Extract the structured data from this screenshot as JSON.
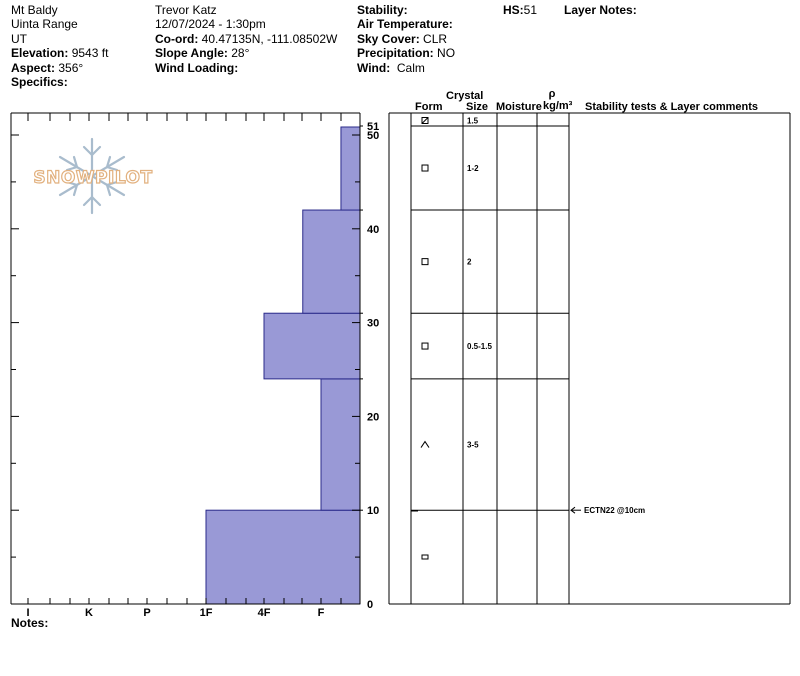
{
  "header": {
    "location": "Mt Baldy",
    "range": "Uinta Range",
    "state": "UT",
    "elevation_label": "Elevation:",
    "elevation_value": "9543 ft",
    "aspect_label": "Aspect:",
    "aspect_value": "356°",
    "specifics_label": "Specifics:",
    "observer": "Trevor Katz",
    "datetime": "12/07/2024 - 1:30pm",
    "coord_label": "Co-ord:",
    "coord_value": "40.47135N, -111.08502W",
    "slope_label": "Slope Angle:",
    "slope_value": "28°",
    "wind_loading_label": "Wind Loading:",
    "stability_label": "Stability:",
    "air_temp_label": "Air Temperature:",
    "sky_label": "Sky Cover:",
    "sky_value": "CLR",
    "precip_label": "Precipitation:",
    "precip_value": "NO",
    "wind_label": "Wind:",
    "wind_value": "Calm",
    "hs_label": "HS:",
    "hs_value": "51",
    "layer_notes_label": "Layer Notes:"
  },
  "logo": {
    "text": "SNOWPILOT"
  },
  "columns": {
    "crystal": "Crystal",
    "form": "Form",
    "size": "Size",
    "moisture": "Moisture",
    "rho": "ρ",
    "density_unit": "kg/m³",
    "stability_comments": "Stability tests & Layer comments"
  },
  "notes_label": "Notes:",
  "chart_data": {
    "type": "bar",
    "orientation": "horizontal-step",
    "title": "",
    "xlabel": "",
    "ylabel": "",
    "x_categories": [
      "I",
      "K",
      "P",
      "1F",
      "4F",
      "F"
    ],
    "ylim": [
      0,
      52
    ],
    "y_ticks": [
      0,
      10,
      20,
      30,
      40,
      50,
      51
    ],
    "bar_color": "#9999d6",
    "layers": [
      {
        "bottom": 0,
        "top": 10,
        "hardness_index": 3,
        "form": "rect",
        "size": ""
      },
      {
        "bottom": 10,
        "top": 24,
        "hardness_index": 5,
        "form": "facet",
        "size": "3-5"
      },
      {
        "bottom": 24,
        "top": 31,
        "hardness_index": 4,
        "form": "square",
        "size": "0.5-1.5"
      },
      {
        "bottom": 31,
        "top": 42,
        "hardness_index": 4.68,
        "form": "square",
        "size": "2"
      },
      {
        "bottom": 42,
        "top": 51,
        "hardness_index": 5.35,
        "form": "square",
        "size": "1-2"
      },
      {
        "bottom": 51,
        "top": 52,
        "hardness_index": 5.35,
        "form": "squarex",
        "size": "1.5"
      }
    ],
    "stability_tests": [
      {
        "depth": 10,
        "text": "ECTN22 @10cm"
      }
    ]
  }
}
